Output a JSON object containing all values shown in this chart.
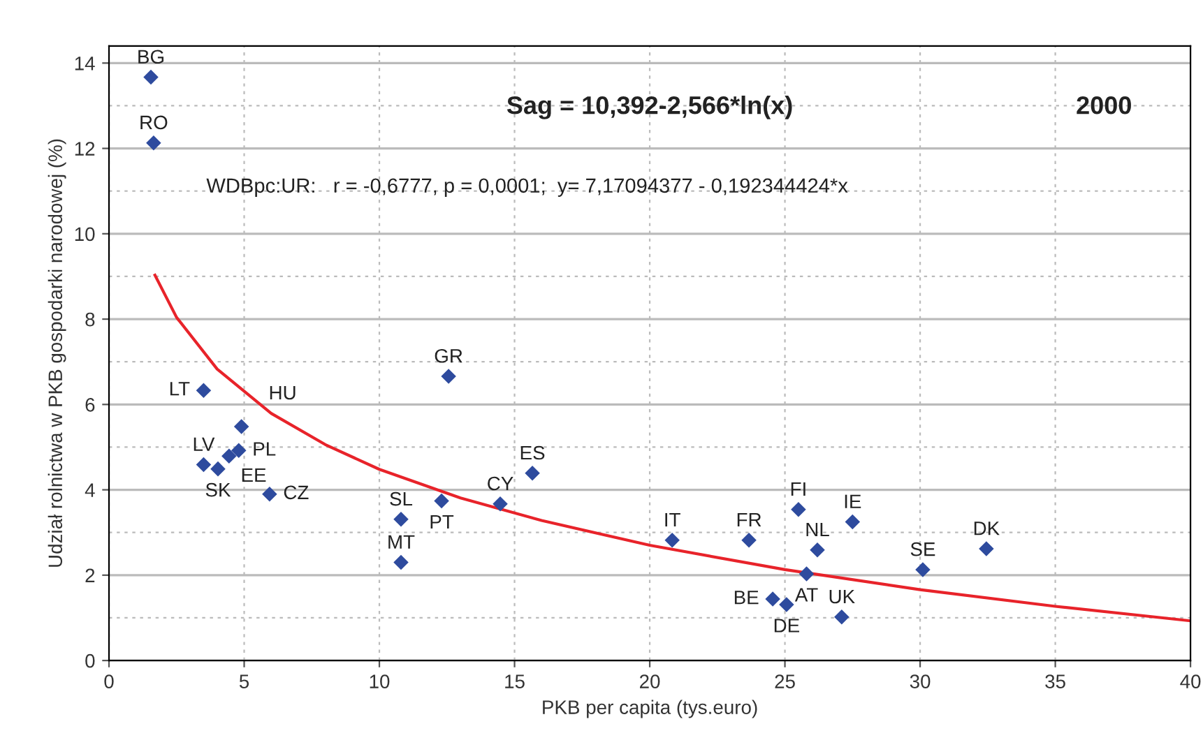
{
  "chart_data": {
    "type": "scatter",
    "xlabel": "PKB per capita (tys.euro)",
    "ylabel": "Udział rolnictwa w PKB gospodarki narodowej (%)",
    "xlim": [
      0,
      40
    ],
    "xticks": [
      0,
      5,
      10,
      15,
      20,
      25,
      30,
      35,
      40
    ],
    "ylim": [
      0,
      14.4
    ],
    "yticks": [
      0,
      2,
      4,
      6,
      8,
      10,
      12,
      14
    ],
    "grid": true,
    "marker": "diamond",
    "legend": false,
    "series": [
      {
        "color": "#2e4b9e",
        "x": [
          1.55,
          1.65,
          3.5,
          3.5,
          4.03,
          4.44,
          4.8,
          4.9,
          5.94,
          10.8,
          10.8,
          12.56,
          12.3,
          14.47,
          15.66,
          20.83,
          23.67,
          26.2,
          25.8,
          24.55,
          25.06,
          27.1,
          30.1,
          32.45,
          27.5,
          25.5
        ],
        "values": [
          13.67,
          12.13,
          6.33,
          4.59,
          4.49,
          4.79,
          4.92,
          5.48,
          3.9,
          3.31,
          2.3,
          6.66,
          3.74,
          3.67,
          4.39,
          2.82,
          2.82,
          2.59,
          2.03,
          1.44,
          1.31,
          1.02,
          2.13,
          2.62,
          3.25,
          3.54
        ]
      },
      {
        "type": "line",
        "color": "#e8232a",
        "marker": "none",
        "x": [
          1.7,
          2.5,
          4,
          6,
          8,
          10,
          13,
          16,
          20,
          25,
          30,
          35,
          40
        ],
        "values": [
          9.03,
          8.04,
          6.83,
          5.79,
          5.06,
          4.48,
          3.81,
          3.28,
          2.7,
          2.13,
          1.66,
          1.27,
          0.93
        ]
      }
    ],
    "annotations": [
      "Sag = 10,392-2,566*ln(x)",
      "2000",
      "WDBpc:UR:   r = -0,6777, p = 0,0001;  y= 7,17094377 - 0,192344424*x",
      {
        "text": "BG",
        "x": 1.55,
        "y": 13.67
      },
      {
        "text": "RO",
        "x": 1.65,
        "y": 12.13
      },
      {
        "text": "LT",
        "x": 3.5,
        "y": 6.33
      },
      {
        "text": "LV",
        "x": 3.5,
        "y": 4.59
      },
      {
        "text": "SK",
        "x": 4.03,
        "y": 4.49
      },
      {
        "text": "EE",
        "x": 4.44,
        "y": 4.79
      },
      {
        "text": "PL",
        "x": 4.8,
        "y": 4.92
      },
      {
        "text": "HU",
        "x": 4.9,
        "y": 5.48
      },
      {
        "text": "CZ",
        "x": 5.94,
        "y": 3.9
      },
      {
        "text": "SL",
        "x": 10.8,
        "y": 3.31
      },
      {
        "text": "MT",
        "x": 10.8,
        "y": 2.3
      },
      {
        "text": "GR",
        "x": 12.56,
        "y": 6.66
      },
      {
        "text": "PT",
        "x": 12.3,
        "y": 3.74
      },
      {
        "text": "CY",
        "x": 14.47,
        "y": 3.67
      },
      {
        "text": "ES",
        "x": 15.66,
        "y": 4.39
      },
      {
        "text": "IT",
        "x": 20.83,
        "y": 2.82
      },
      {
        "text": "FR",
        "x": 23.67,
        "y": 2.82
      },
      {
        "text": "NL",
        "x": 26.2,
        "y": 2.59
      },
      {
        "text": "AT",
        "x": 25.8,
        "y": 2.03
      },
      {
        "text": "BE",
        "x": 24.55,
        "y": 1.44
      },
      {
        "text": "DE",
        "x": 25.06,
        "y": 1.31
      },
      {
        "text": "UK",
        "x": 27.1,
        "y": 1.02
      },
      {
        "text": "SE",
        "x": 30.1,
        "y": 2.13
      },
      {
        "text": "DK",
        "x": 32.45,
        "y": 2.62
      },
      {
        "text": "IE",
        "x": 27.5,
        "y": 3.25
      },
      {
        "text": "FI",
        "x": 25.5,
        "y": 3.54
      }
    ]
  }
}
